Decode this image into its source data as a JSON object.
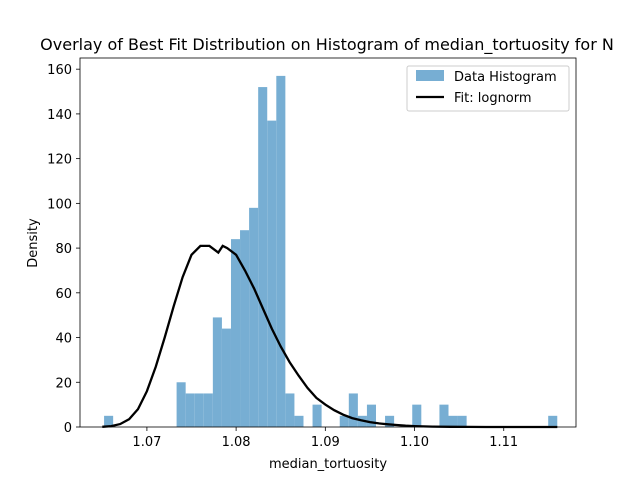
{
  "chart_data": {
    "type": "bar",
    "title": "Overlay of Best Fit Distribution on Histogram of median_tortuosity for N",
    "xlabel": "median_tortuosity",
    "ylabel": "Density",
    "xlim": [
      1.0625,
      1.1181
    ],
    "ylim": [
      0,
      165
    ],
    "xticks": [
      1.07,
      1.08,
      1.09,
      1.1,
      1.11
    ],
    "xtick_labels": [
      "1.07",
      "1.08",
      "1.09",
      "1.10",
      "1.11"
    ],
    "yticks": [
      0,
      20,
      40,
      60,
      80,
      100,
      120,
      140,
      160
    ],
    "ytick_labels": [
      "0",
      "20",
      "40",
      "60",
      "80",
      "100",
      "120",
      "140",
      "160"
    ],
    "legend_position": "top-right",
    "grid": false,
    "histogram": {
      "name": "Data Histogram",
      "color": "#77aed3",
      "bin_start": 1.0652,
      "bin_width": 0.001016,
      "densities": [
        5,
        0,
        0,
        0,
        0,
        0,
        0,
        0,
        20,
        15,
        15,
        15,
        49,
        44,
        84,
        88,
        98,
        152,
        137,
        157,
        15,
        5,
        0,
        10,
        0,
        0,
        5,
        15,
        5,
        10,
        0,
        5,
        0,
        0,
        10,
        0,
        0,
        10,
        5,
        5,
        0,
        0,
        0,
        0,
        0,
        0,
        0,
        0,
        0,
        5
      ]
    },
    "fit": {
      "name": "Fit: lognorm",
      "color": "#000000",
      "x": [
        1.065,
        1.066,
        1.067,
        1.068,
        1.069,
        1.07,
        1.071,
        1.072,
        1.073,
        1.074,
        1.075,
        1.076,
        1.077,
        1.078,
        1.0785,
        1.079,
        1.08,
        1.081,
        1.082,
        1.083,
        1.084,
        1.085,
        1.086,
        1.087,
        1.088,
        1.089,
        1.09,
        1.091,
        1.092,
        1.093,
        1.094,
        1.095,
        1.096,
        1.097,
        1.098,
        1.099,
        1.1,
        1.102,
        1.104,
        1.106,
        1.108,
        1.11,
        1.112,
        1.114,
        1.116
      ],
      "y": [
        0.1,
        0.4,
        1.3,
        3.5,
        8,
        16,
        27,
        40,
        54,
        67,
        77,
        81,
        81,
        78,
        81,
        80,
        77,
        70,
        62,
        53,
        44,
        36,
        29,
        23,
        17.5,
        13,
        10,
        7.5,
        5.5,
        4,
        3,
        2.2,
        1.6,
        1.2,
        0.9,
        0.6,
        0.4,
        0.2,
        0.1,
        0.05,
        0.02,
        0,
        0,
        0,
        0
      ]
    }
  }
}
